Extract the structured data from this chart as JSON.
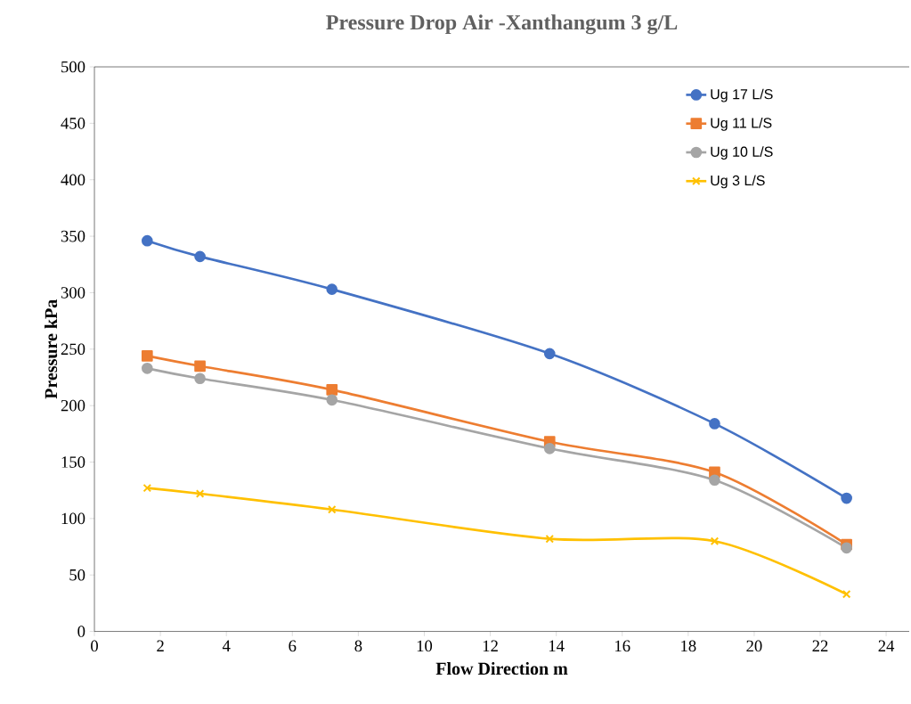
{
  "chart_data": {
    "type": "line",
    "title": "Pressure Drop Air -Xanthangum 3 g/L",
    "xlabel": "Flow Direction m",
    "ylabel": "Pressure  kPa",
    "x": [
      1.6,
      3.2,
      7.2,
      13.8,
      18.8,
      22.8
    ],
    "series": [
      {
        "name": "Ug 17 L/S",
        "color": "#4472c4",
        "marker": "circle",
        "values": [
          346,
          332,
          303,
          246,
          184,
          118
        ]
      },
      {
        "name": "Ug 11 L/S",
        "color": "#ed7d31",
        "marker": "square",
        "values": [
          244,
          235,
          214,
          168,
          141,
          77
        ]
      },
      {
        "name": "Ug 10 L/S",
        "color": "#a5a5a5",
        "marker": "circle",
        "values": [
          233,
          224,
          205,
          162,
          134,
          74
        ]
      },
      {
        "name": "Ug 3 L/S",
        "color": "#ffc000",
        "marker": "cross",
        "values": [
          127,
          122,
          108,
          82,
          80,
          33
        ]
      }
    ],
    "xlim": [
      0,
      24.7
    ],
    "xticks": [
      0,
      2,
      4,
      6,
      8,
      10,
      12,
      14,
      16,
      18,
      20,
      22,
      24
    ],
    "ylim": [
      0,
      500
    ],
    "yticks": [
      0,
      50,
      100,
      150,
      200,
      250,
      300,
      350,
      400,
      450,
      500
    ],
    "grid": false,
    "legend": "top right",
    "line_style": "solid"
  }
}
